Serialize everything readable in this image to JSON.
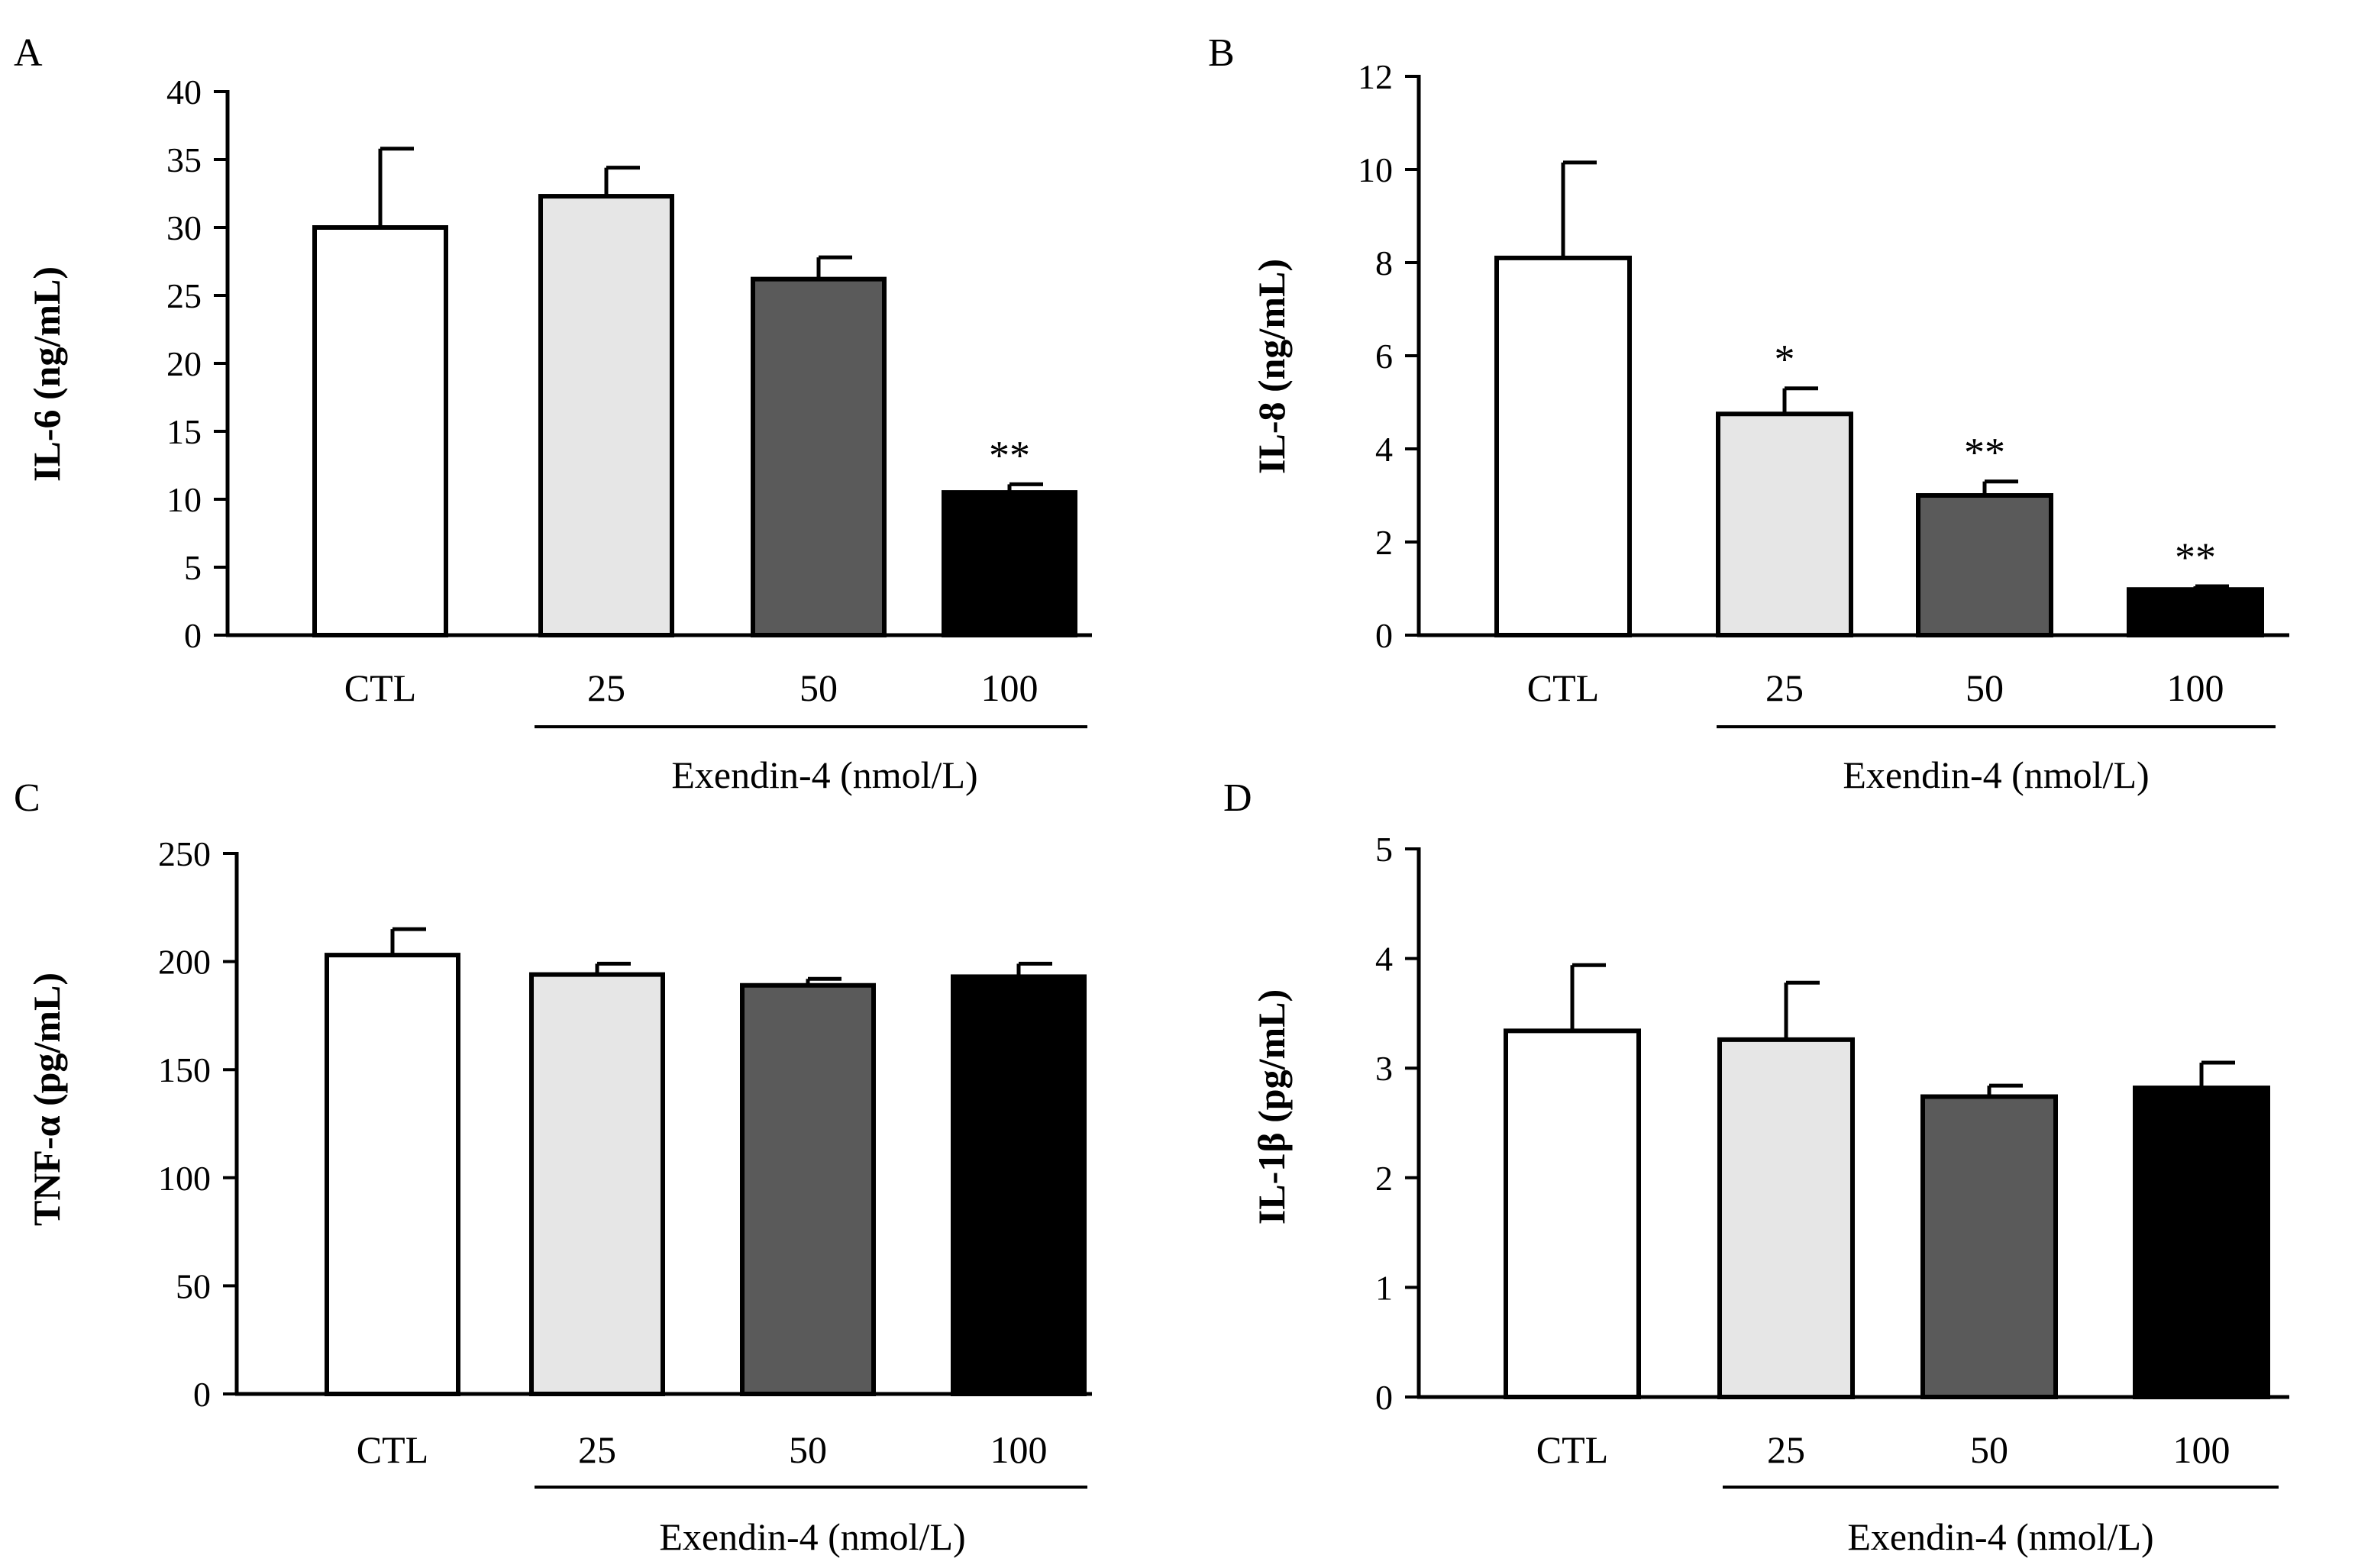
{
  "colors": {
    "axis": "#000000",
    "bar_outline": "#000000",
    "bar_fills": [
      "#ffffff",
      "#e6e6e6",
      "#5a5a5a",
      "#000000"
    ]
  },
  "chart_data": [
    {
      "panel": "A",
      "type": "bar",
      "categories": [
        "CTL",
        "25",
        "50",
        "100"
      ],
      "values": [
        30,
        32.3,
        26.2,
        10.5
      ],
      "errors": [
        5.8,
        2.1,
        1.6,
        0.6
      ],
      "significance": [
        "",
        "",
        "",
        "**"
      ],
      "ylabel": "IL-6 (ng/mL)",
      "ylim": [
        0,
        40
      ],
      "yticks": [
        "0",
        "5",
        "10",
        "15",
        "20",
        "25",
        "30",
        "35",
        "40"
      ],
      "group_label": "Exendin-4 (nmol/L)"
    },
    {
      "panel": "B",
      "type": "bar",
      "categories": [
        "CTL",
        "25",
        "50",
        "100"
      ],
      "values": [
        8.1,
        4.75,
        3.0,
        0.98
      ],
      "errors": [
        2.05,
        0.55,
        0.3,
        0.07
      ],
      "significance": [
        "",
        "*",
        "**",
        "**"
      ],
      "ylabel": "IL-8 (ng/mL)",
      "ylim": [
        0,
        12
      ],
      "yticks": [
        "0",
        "2",
        "4",
        "6",
        "8",
        "10",
        "12"
      ],
      "group_label": "Exendin-4 (nmol/L)"
    },
    {
      "panel": "C",
      "type": "bar",
      "categories": [
        "CTL",
        "25",
        "50",
        "100"
      ],
      "values": [
        203,
        194,
        189,
        193
      ],
      "errors": [
        12,
        5,
        3,
        6
      ],
      "significance": [
        "",
        "",
        "",
        ""
      ],
      "ylabel": "TNF-α (pg/mL)",
      "ylim": [
        0,
        250
      ],
      "yticks": [
        "0",
        "50",
        "100",
        "150",
        "200",
        "250"
      ],
      "group_label": "Exendin-4 (nmol/L)"
    },
    {
      "panel": "D",
      "type": "bar",
      "categories": [
        "CTL",
        "25",
        "50",
        "100"
      ],
      "values": [
        3.34,
        3.26,
        2.74,
        2.82
      ],
      "errors": [
        0.6,
        0.52,
        0.1,
        0.23
      ],
      "significance": [
        "",
        "",
        "",
        ""
      ],
      "ylabel": "IL-1β (pg/mL)",
      "ylim": [
        0,
        5
      ],
      "yticks": [
        "0",
        "1",
        "2",
        "3",
        "4",
        "5"
      ],
      "group_label": "Exendin-4 (nmol/L)"
    }
  ]
}
